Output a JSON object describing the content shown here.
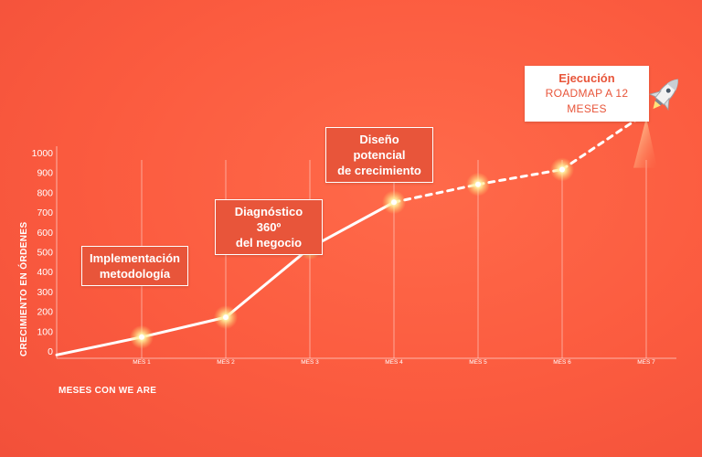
{
  "chart_data": {
    "type": "line",
    "ylabel": "CRECIMIENTO EN ÓRDENES",
    "xlabel": "MESES CON WE ARE",
    "ylim": [
      0,
      1000
    ],
    "yticks": [
      "0",
      "100",
      "200",
      "300",
      "400",
      "500",
      "600",
      "700",
      "800",
      "900",
      "1000"
    ],
    "categories": [
      "MES 1",
      "MES 2",
      "MES 3",
      "MES 4",
      "MES 5",
      "MES 6",
      "MES 7"
    ],
    "x": [
      0.2,
      1,
      2,
      3,
      4,
      5,
      6,
      7
    ],
    "values": [
      -20,
      70,
      170,
      520,
      750,
      840,
      915,
      1200
    ],
    "dashed_from_index": 4,
    "grid": "vertical",
    "colors": {
      "line": "#ffffff",
      "accent": "#e8553a",
      "background": "#fb5b3f",
      "glow": "#fff4a0"
    }
  },
  "annotations": {
    "implementacion": {
      "line1": "Implementación",
      "line2": "metodología"
    },
    "diagnostico": {
      "line1": "Diagnóstico 360º",
      "line2": "del negocio"
    },
    "diseno": {
      "line1": "Diseño potencial",
      "line2": "de crecimiento"
    },
    "ejecucion": {
      "title": "Ejecución",
      "subtitle": "ROADMAP A 12 MESES"
    }
  },
  "icons": {
    "rocket": "rocket-icon"
  }
}
